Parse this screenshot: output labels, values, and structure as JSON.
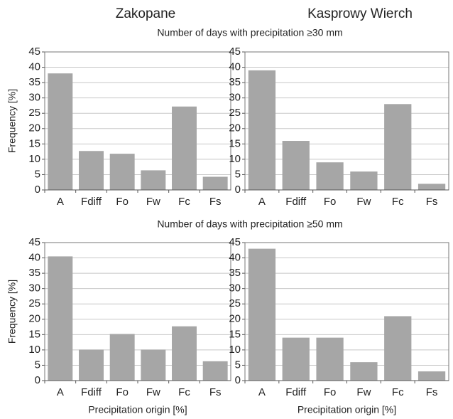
{
  "figure": {
    "columns": [
      "Zakopane",
      "Kasprowy Wierch"
    ],
    "rows": [
      "Number of days with precipitation ≥30 mm",
      "Number of days with precipitation ≥50 mm"
    ]
  },
  "chart_data": [
    {
      "type": "bar",
      "ylabel": "Frequency [%]",
      "categories": [
        "A",
        "Fdiff",
        "Fo",
        "Fw",
        "Fc",
        "Fs"
      ],
      "values": [
        38,
        12.7,
        11.8,
        6.4,
        27.2,
        4.3
      ],
      "color": "#a6a6a6",
      "ylim": [
        0,
        45
      ],
      "yticks": [
        0,
        5,
        10,
        15,
        20,
        25,
        30,
        35,
        40,
        45
      ],
      "grid": true
    },
    {
      "type": "bar",
      "categories": [
        "A",
        "Fdiff",
        "Fo",
        "Fw",
        "Fc",
        "Fs"
      ],
      "values": [
        39,
        16,
        9,
        6,
        28,
        2
      ],
      "color": "#a6a6a6",
      "ylim": [
        0,
        45
      ],
      "yticks": [
        0,
        5,
        10,
        15,
        20,
        25,
        30,
        35,
        40,
        45
      ],
      "grid": true
    },
    {
      "type": "bar",
      "ylabel": "Frequency [%]",
      "xlabel": "Precipitation origin [%]",
      "categories": [
        "A",
        "Fdiff",
        "Fo",
        "Fw",
        "Fc",
        "Fs"
      ],
      "values": [
        40.5,
        10.1,
        15.2,
        10.1,
        17.7,
        6.3
      ],
      "color": "#a6a6a6",
      "ylim": [
        0,
        45
      ],
      "yticks": [
        0,
        5,
        10,
        15,
        20,
        25,
        30,
        35,
        40,
        45
      ],
      "grid": true
    },
    {
      "type": "bar",
      "xlabel": "Precipitation origin [%]",
      "categories": [
        "A",
        "Fdiff",
        "Fo",
        "Fw",
        "Fc",
        "Fs"
      ],
      "values": [
        43,
        14,
        14,
        6,
        21,
        3
      ],
      "color": "#a6a6a6",
      "ylim": [
        0,
        45
      ],
      "yticks": [
        0,
        5,
        10,
        15,
        20,
        25,
        30,
        35,
        40,
        45
      ],
      "grid": true
    }
  ]
}
